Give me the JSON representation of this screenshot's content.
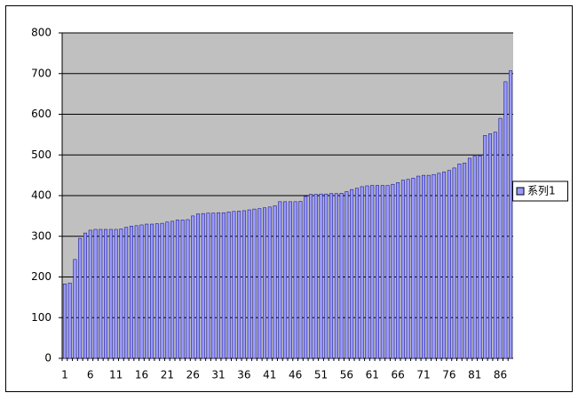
{
  "chart_data": {
    "type": "bar",
    "categories": [
      1,
      null,
      null,
      null,
      null,
      6,
      null,
      null,
      null,
      null,
      11,
      null,
      null,
      null,
      null,
      16,
      null,
      null,
      null,
      null,
      21,
      null,
      null,
      null,
      null,
      26,
      null,
      null,
      null,
      null,
      31,
      null,
      null,
      null,
      null,
      36,
      null,
      null,
      null,
      null,
      41,
      null,
      null,
      null,
      null,
      46,
      null,
      null,
      null,
      null,
      51,
      null,
      null,
      null,
      null,
      56,
      null,
      null,
      null,
      null,
      61,
      null,
      null,
      null,
      null,
      66,
      null,
      null,
      null,
      null,
      71,
      null,
      null,
      null,
      null,
      76,
      null,
      null,
      null,
      null,
      81,
      null,
      null,
      null,
      null,
      86,
      null,
      null
    ],
    "series": [
      {
        "name": "系列1",
        "color": "#9999ff",
        "values": [
          183,
          185,
          243,
          295,
          308,
          315,
          317,
          317,
          317,
          317,
          317,
          318,
          322,
          325,
          326,
          328,
          330,
          330,
          331,
          332,
          335,
          337,
          340,
          340,
          341,
          350,
          355,
          356,
          357,
          357,
          358,
          358,
          360,
          361,
          362,
          363,
          365,
          367,
          368,
          370,
          372,
          375,
          385,
          385,
          385,
          385,
          386,
          398,
          403,
          403,
          404,
          404,
          405,
          405,
          406,
          410,
          415,
          418,
          422,
          424,
          425,
          425,
          425,
          425,
          428,
          432,
          438,
          440,
          443,
          448,
          450,
          450,
          452,
          455,
          458,
          462,
          468,
          478,
          480,
          492,
          497,
          498,
          548,
          552,
          556,
          590,
          680,
          707
        ]
      }
    ],
    "ylim": [
      0,
      800
    ],
    "yticks": [
      0,
      100,
      200,
      300,
      400,
      500,
      600,
      700,
      800
    ],
    "grid": true,
    "legend": "right"
  }
}
